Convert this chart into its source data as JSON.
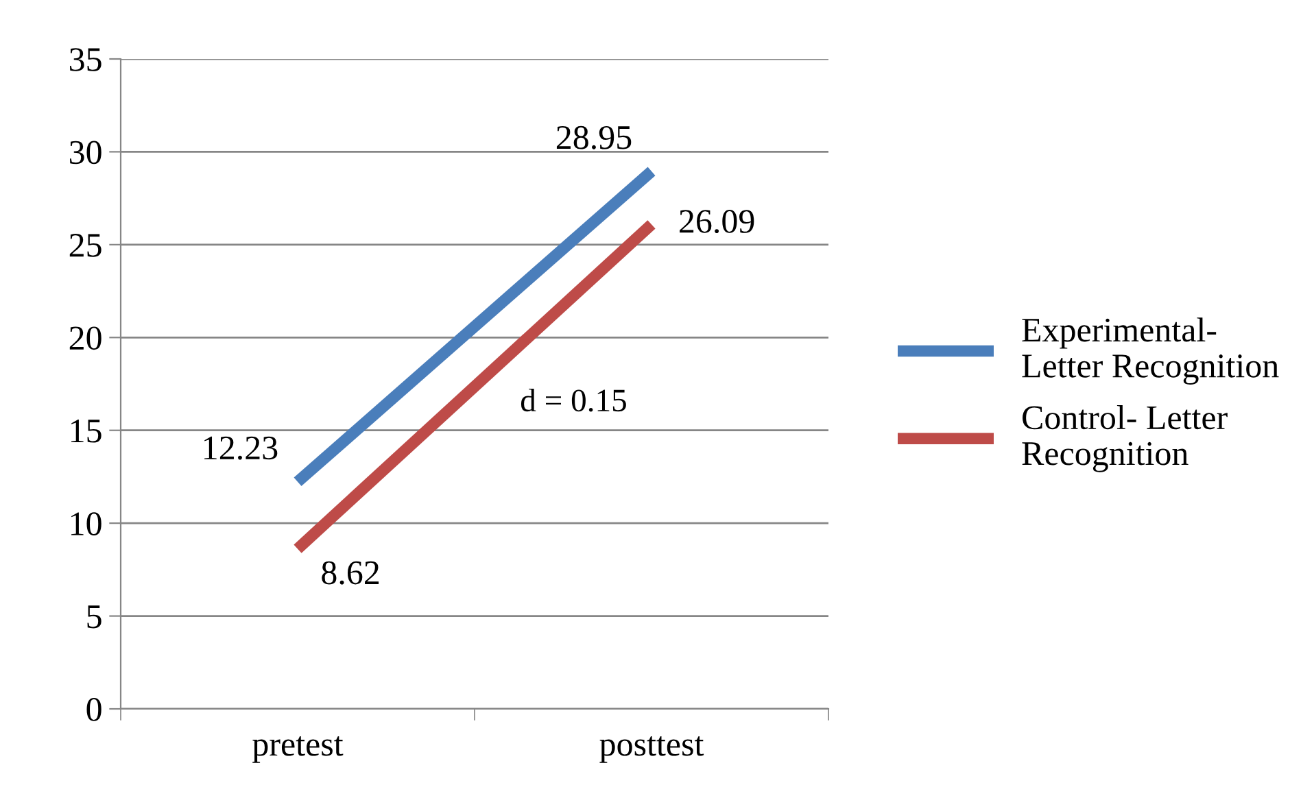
{
  "chart_data": {
    "type": "line",
    "categories": [
      "pretest",
      "posttest"
    ],
    "series": [
      {
        "name": "Experimental- Letter Recognition",
        "color": "#4a7ebb",
        "values": [
          12.23,
          28.95
        ]
      },
      {
        "name": "Control- Letter Recognition",
        "color": "#be4b48",
        "values": [
          8.62,
          26.09
        ]
      }
    ],
    "ylim": [
      0,
      35
    ],
    "yticks": [
      0,
      5,
      10,
      15,
      20,
      25,
      30,
      35
    ],
    "grid": "y",
    "legend": "right",
    "data_labels": true,
    "marker": "none",
    "line_style": "solid",
    "annotations": [
      "d = 0.15"
    ]
  }
}
